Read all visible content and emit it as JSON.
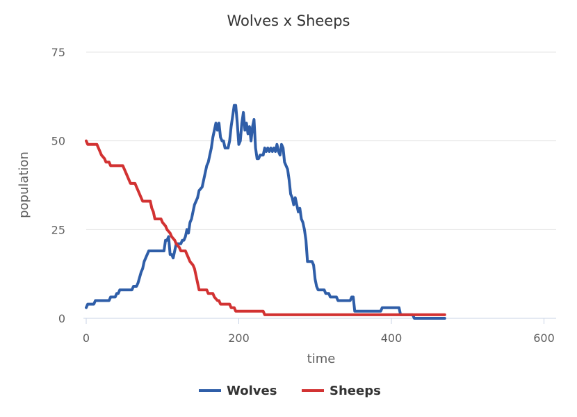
{
  "chart_data": {
    "type": "line",
    "title": "Wolves x Sheeps",
    "xlabel": "time",
    "ylabel": "population",
    "xlim": [
      0,
      600
    ],
    "ylim": [
      0,
      75
    ],
    "xticks": [
      "0",
      "200",
      "400",
      "600"
    ],
    "yticks": [
      "0",
      "25",
      "50",
      "75"
    ],
    "grid": true,
    "legend_position": "bottom-center",
    "series": [
      {
        "name": "Wolves",
        "color": "#2f5ea8",
        "points": [
          [
            0,
            3
          ],
          [
            2,
            4
          ],
          [
            10,
            4
          ],
          [
            12,
            5
          ],
          [
            30,
            5
          ],
          [
            32,
            6
          ],
          [
            38,
            6
          ],
          [
            40,
            7
          ],
          [
            42,
            7
          ],
          [
            44,
            8
          ],
          [
            60,
            8
          ],
          [
            62,
            9
          ],
          [
            66,
            9
          ],
          [
            68,
            10
          ],
          [
            72,
            13
          ],
          [
            74,
            14
          ],
          [
            76,
            16
          ],
          [
            78,
            17
          ],
          [
            80,
            18
          ],
          [
            82,
            19
          ],
          [
            100,
            19
          ],
          [
            102,
            19
          ],
          [
            104,
            22
          ],
          [
            106,
            22
          ],
          [
            108,
            23
          ],
          [
            110,
            18
          ],
          [
            112,
            18
          ],
          [
            114,
            17
          ],
          [
            116,
            19
          ],
          [
            118,
            21
          ],
          [
            124,
            21
          ],
          [
            126,
            22
          ],
          [
            128,
            22
          ],
          [
            130,
            23
          ],
          [
            132,
            25
          ],
          [
            134,
            24
          ],
          [
            136,
            27
          ],
          [
            138,
            28
          ],
          [
            140,
            30
          ],
          [
            142,
            32
          ],
          [
            146,
            34
          ],
          [
            148,
            36
          ],
          [
            152,
            37
          ],
          [
            154,
            39
          ],
          [
            158,
            43
          ],
          [
            160,
            44
          ],
          [
            162,
            46
          ],
          [
            164,
            48
          ],
          [
            166,
            51
          ],
          [
            168,
            53
          ],
          [
            170,
            55
          ],
          [
            172,
            53
          ],
          [
            174,
            55
          ],
          [
            176,
            51
          ],
          [
            178,
            50
          ],
          [
            180,
            50
          ],
          [
            182,
            48
          ],
          [
            186,
            48
          ],
          [
            188,
            50
          ],
          [
            190,
            54
          ],
          [
            192,
            57
          ],
          [
            194,
            60
          ],
          [
            196,
            60
          ],
          [
            198,
            55
          ],
          [
            200,
            49
          ],
          [
            202,
            50
          ],
          [
            204,
            55
          ],
          [
            206,
            58
          ],
          [
            208,
            53
          ],
          [
            210,
            55
          ],
          [
            212,
            52
          ],
          [
            214,
            54
          ],
          [
            216,
            50
          ],
          [
            218,
            54
          ],
          [
            220,
            56
          ],
          [
            222,
            48
          ],
          [
            224,
            45
          ],
          [
            226,
            45
          ],
          [
            228,
            46
          ],
          [
            232,
            46
          ],
          [
            234,
            48
          ],
          [
            236,
            47
          ],
          [
            238,
            48
          ],
          [
            240,
            47
          ],
          [
            242,
            48
          ],
          [
            244,
            47
          ],
          [
            246,
            48
          ],
          [
            248,
            47
          ],
          [
            250,
            49
          ],
          [
            252,
            47
          ],
          [
            254,
            46
          ],
          [
            256,
            49
          ],
          [
            258,
            48
          ],
          [
            260,
            44
          ],
          [
            262,
            43
          ],
          [
            264,
            42
          ],
          [
            266,
            39
          ],
          [
            268,
            35
          ],
          [
            270,
            34
          ],
          [
            272,
            32
          ],
          [
            274,
            34
          ],
          [
            276,
            32
          ],
          [
            278,
            30
          ],
          [
            280,
            31
          ],
          [
            282,
            28
          ],
          [
            284,
            27
          ],
          [
            286,
            25
          ],
          [
            288,
            22
          ],
          [
            290,
            16
          ],
          [
            292,
            16
          ],
          [
            296,
            16
          ],
          [
            298,
            15
          ],
          [
            300,
            11
          ],
          [
            302,
            9
          ],
          [
            304,
            8
          ],
          [
            312,
            8
          ],
          [
            314,
            7
          ],
          [
            318,
            7
          ],
          [
            320,
            6
          ],
          [
            328,
            6
          ],
          [
            330,
            5
          ],
          [
            346,
            5
          ],
          [
            348,
            6
          ],
          [
            350,
            6
          ],
          [
            352,
            2
          ],
          [
            386,
            2
          ],
          [
            388,
            3
          ],
          [
            410,
            3
          ],
          [
            412,
            1
          ],
          [
            428,
            1
          ],
          [
            430,
            0
          ],
          [
            470,
            0
          ]
        ]
      },
      {
        "name": "Sheeps",
        "color": "#d23232",
        "points": [
          [
            0,
            50
          ],
          [
            2,
            49
          ],
          [
            14,
            49
          ],
          [
            16,
            48
          ],
          [
            18,
            47
          ],
          [
            20,
            46
          ],
          [
            24,
            45
          ],
          [
            26,
            44
          ],
          [
            30,
            44
          ],
          [
            32,
            43
          ],
          [
            48,
            43
          ],
          [
            50,
            42
          ],
          [
            52,
            41
          ],
          [
            54,
            40
          ],
          [
            56,
            39
          ],
          [
            58,
            38
          ],
          [
            64,
            38
          ],
          [
            66,
            37
          ],
          [
            68,
            36
          ],
          [
            70,
            35
          ],
          [
            72,
            34
          ],
          [
            74,
            33
          ],
          [
            84,
            33
          ],
          [
            86,
            31
          ],
          [
            88,
            30
          ],
          [
            90,
            28
          ],
          [
            98,
            28
          ],
          [
            100,
            27
          ],
          [
            104,
            26
          ],
          [
            106,
            25
          ],
          [
            110,
            24
          ],
          [
            112,
            23
          ],
          [
            116,
            22
          ],
          [
            118,
            21
          ],
          [
            122,
            20
          ],
          [
            124,
            19
          ],
          [
            130,
            19
          ],
          [
            132,
            18
          ],
          [
            134,
            17
          ],
          [
            136,
            16
          ],
          [
            140,
            15
          ],
          [
            142,
            14
          ],
          [
            144,
            12
          ],
          [
            146,
            10
          ],
          [
            148,
            8
          ],
          [
            150,
            8
          ],
          [
            158,
            8
          ],
          [
            160,
            7
          ],
          [
            166,
            7
          ],
          [
            168,
            6
          ],
          [
            172,
            5
          ],
          [
            174,
            5
          ],
          [
            176,
            4
          ],
          [
            188,
            4
          ],
          [
            190,
            3
          ],
          [
            194,
            3
          ],
          [
            196,
            2
          ],
          [
            232,
            2
          ],
          [
            234,
            1
          ],
          [
            470,
            1
          ]
        ]
      }
    ]
  }
}
